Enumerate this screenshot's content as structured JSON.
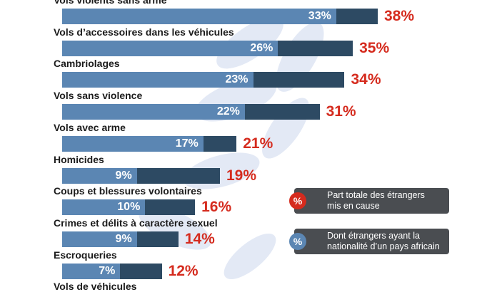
{
  "chart_data": {
    "type": "bar",
    "orientation": "horizontal",
    "stacked_overlay": true,
    "categories": [
      "Vols violents sans arme",
      "Vols d’accessoires dans les véhicules",
      "Cambriolages",
      "Vols sans violence",
      "Vols avec arme",
      "Homicides",
      "Coups et blessures volontaires",
      "Crimes et délits à caractère sexuel",
      "Escroqueries",
      "Vols de véhicules"
    ],
    "series": [
      {
        "name": "Part totale des étrangers mis en cause",
        "values": [
          38,
          35,
          34,
          31,
          21,
          19,
          16,
          14,
          12,
          null
        ],
        "labels": [
          "38%",
          "35%",
          "34%",
          "31%",
          "21%",
          "19%",
          "16%",
          "14%",
          "12%",
          ""
        ],
        "color": "#2d4a63",
        "label_color": "#d52b1e"
      },
      {
        "name": "Dont étrangers ayant la nationalité d’un pays africain",
        "values": [
          33,
          26,
          23,
          22,
          17,
          9,
          10,
          9,
          7,
          null
        ],
        "labels": [
          "33%",
          "26%",
          "23%",
          "22%",
          "17%",
          "9%",
          "10%",
          "9%",
          "7%",
          ""
        ],
        "color": "#5b86b3",
        "label_color": "#ffffff"
      }
    ],
    "unit": "%",
    "xlim": [
      0,
      38
    ],
    "grid": false,
    "legend": "bottom-right"
  },
  "legend_items": [
    {
      "icon": "percent-circle-red-icon",
      "symbol": "%",
      "color": "#d52b1e",
      "line1": "Part totale des étrangers",
      "line2": "mis en cause"
    },
    {
      "icon": "percent-circle-blue-icon",
      "symbol": "%",
      "color": "#5b86b3",
      "line1": "Dont étrangers ayant la",
      "line2": "nationalité d’un pays africain"
    }
  ],
  "colors": {
    "total_bar": "#2d4a63",
    "africa_bar": "#5b86b3",
    "total_label": "#d52b1e",
    "legend_bg": "#4a4d51",
    "background_decoration": "#dfe6f3"
  }
}
